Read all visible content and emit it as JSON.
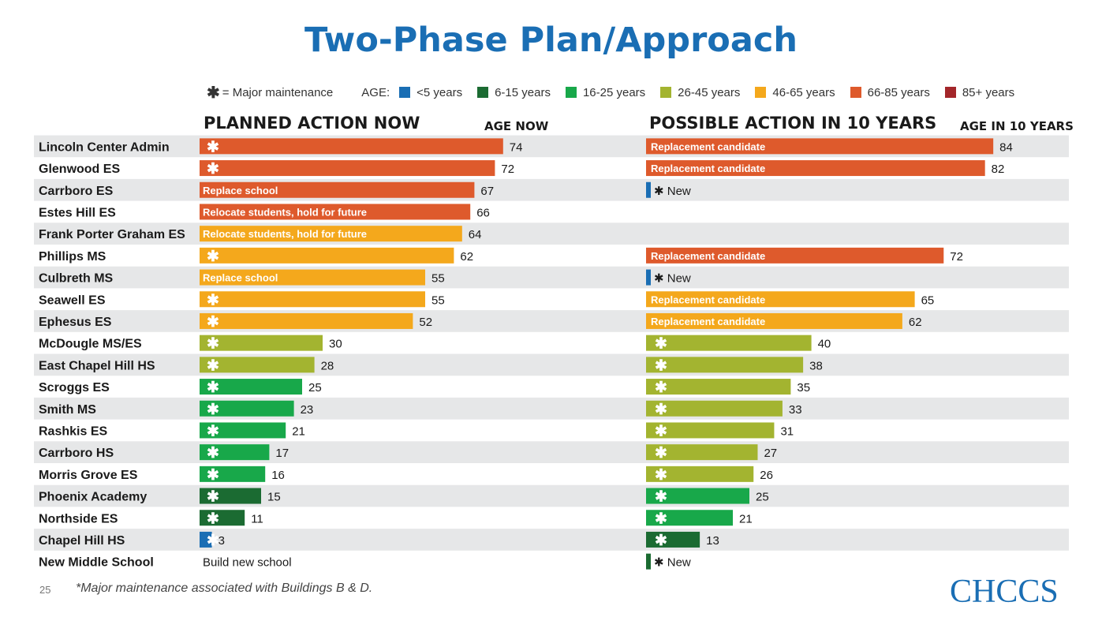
{
  "title": "Two-Phase Plan/Approach",
  "legend": {
    "maintenance_symbol": "✱",
    "maintenance_label": "= Major maintenance",
    "age_label": "AGE:",
    "items": [
      {
        "label": "<5 years",
        "color": "#1a6eb4"
      },
      {
        "label": "6-15 years",
        "color": "#1b6b32"
      },
      {
        "label": "16-25 years",
        "color": "#18a84a"
      },
      {
        "label": "26-45 years",
        "color": "#a3b430"
      },
      {
        "label": "46-65 years",
        "color": "#f4a81c"
      },
      {
        "label": "66-85 years",
        "color": "#de5a2c"
      },
      {
        "label": "85+ years",
        "color": "#a3262a"
      }
    ]
  },
  "headers": {
    "left_title": "PLANNED ACTION NOW",
    "left_age": "AGE NOW",
    "right_title": "POSSIBLE ACTION IN 10 YEARS",
    "right_age": "AGE IN 10 YEARS"
  },
  "chart_data": {
    "type": "bar",
    "categories": [
      "Lincoln Center Admin",
      "Glenwood ES",
      "Carrboro ES",
      "Estes Hill ES",
      "Frank Porter Graham ES",
      "Phillips MS",
      "Culbreth MS",
      "Seawell ES",
      "Ephesus ES",
      "McDougle MS/ES",
      "East Chapel Hill HS",
      "Scroggs ES",
      "Smith MS",
      "Rashkis ES",
      "Carrboro HS",
      "Morris Grove ES",
      "Phoenix Academy",
      "Northside ES",
      "Chapel Hill HS",
      "New Middle School"
    ],
    "series": [
      {
        "name": "AGE NOW",
        "values": [
          74,
          72,
          67,
          66,
          64,
          62,
          55,
          55,
          52,
          30,
          28,
          25,
          23,
          21,
          17,
          16,
          15,
          11,
          3,
          null
        ],
        "labels": [
          "✱",
          "✱",
          "Replace school",
          "Relocate students, hold for future",
          "Relocate students, hold for future",
          "✱",
          "Replace school",
          "✱",
          "✱",
          "✱",
          "✱",
          "✱",
          "✱",
          "✱",
          "✱",
          "✱",
          "✱",
          "✱",
          "✱",
          "Build new school"
        ]
      },
      {
        "name": "AGE IN 10 YEARS",
        "values": [
          84,
          82,
          null,
          null,
          null,
          72,
          null,
          65,
          62,
          40,
          38,
          35,
          33,
          31,
          27,
          26,
          25,
          21,
          13,
          null
        ],
        "labels": [
          "Replacement candidate",
          "Replacement candidate",
          "✱ New",
          "",
          "",
          "Replacement candidate",
          "✱ New",
          "Replacement candidate",
          "Replacement candidate",
          "✱",
          "✱",
          "✱",
          "✱",
          "✱",
          "✱",
          "✱",
          "✱",
          "✱",
          "✱",
          "✱ New"
        ]
      }
    ]
  },
  "footnote": "*Major maintenance associated with Buildings B & D.",
  "page_number": "25",
  "logo": "CHCCS"
}
